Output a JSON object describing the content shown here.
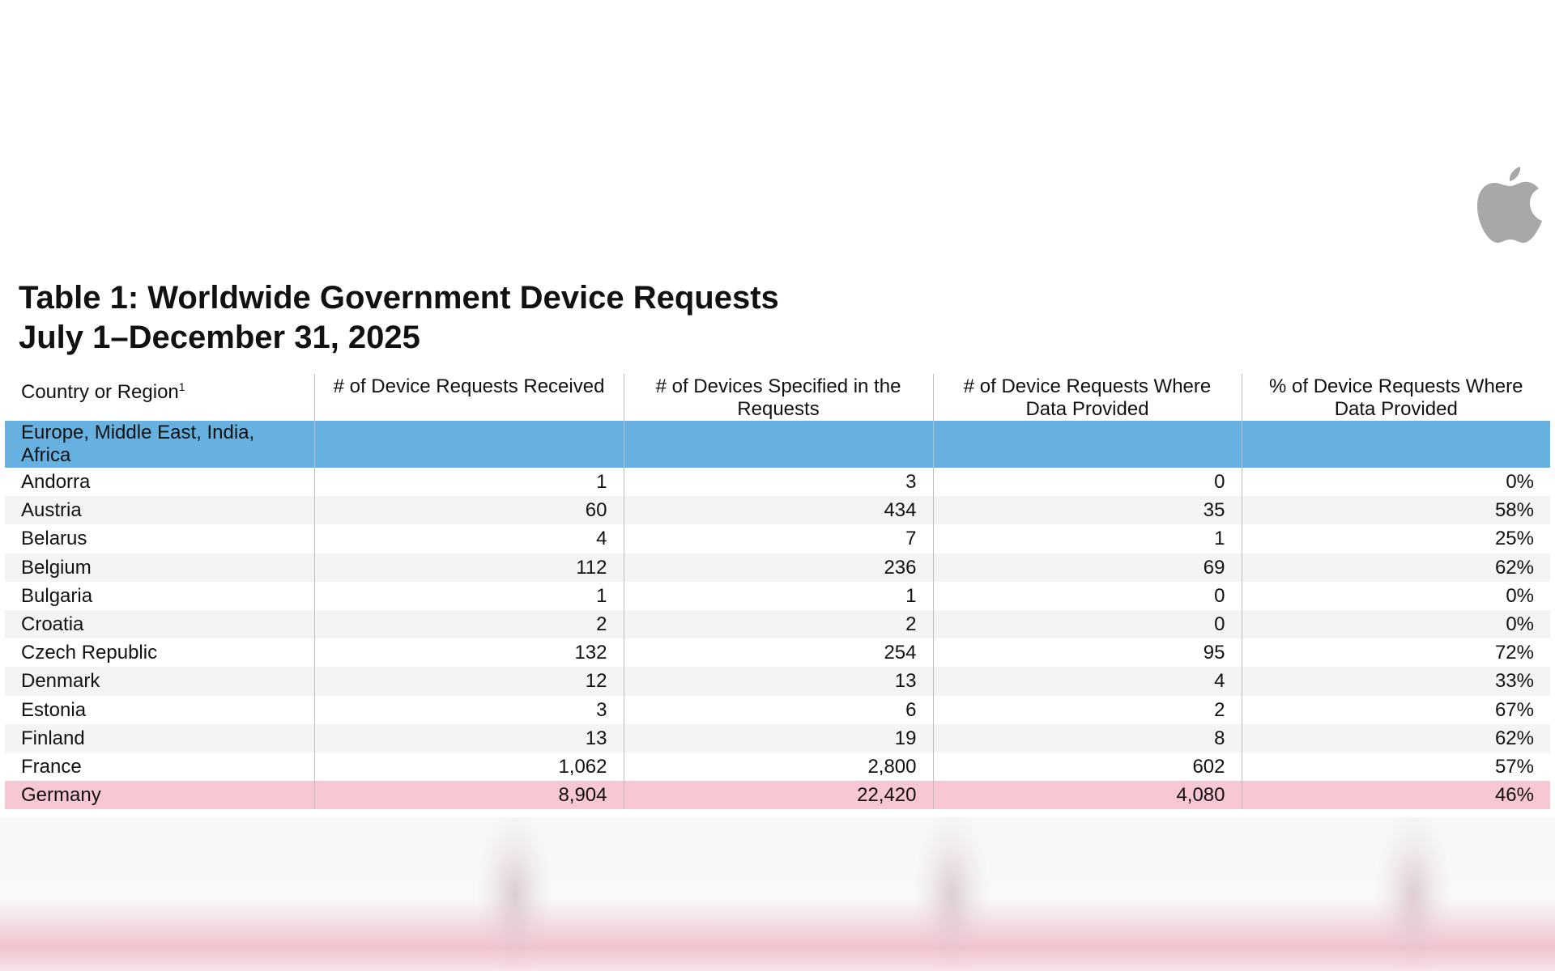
{
  "title": {
    "line1": "Table 1: Worldwide Government Device Requests",
    "line2": "July 1–December 31, 2025"
  },
  "logo": {
    "icon": "apple-logo-icon",
    "color": "#a8a8a8"
  },
  "colors": {
    "region_row": "#66b1df",
    "highlight_row": "#f7c8d3"
  },
  "table": {
    "headers": {
      "country": "Country or Region",
      "country_footnote": "1",
      "requests": "# of Device Requests Received",
      "devices": "# of Devices Specified in the Requests",
      "provided": "# of Device Requests Where Data Provided",
      "percent": "% of Device Requests Where Data Provided"
    },
    "region": "Europe, Middle East, India, Africa",
    "rows": [
      {
        "country": "Andorra",
        "requests": "1",
        "devices": "3",
        "provided": "0",
        "percent": "0%"
      },
      {
        "country": "Austria",
        "requests": "60",
        "devices": "434",
        "provided": "35",
        "percent": "58%"
      },
      {
        "country": "Belarus",
        "requests": "4",
        "devices": "7",
        "provided": "1",
        "percent": "25%"
      },
      {
        "country": "Belgium",
        "requests": "112",
        "devices": "236",
        "provided": "69",
        "percent": "62%"
      },
      {
        "country": "Bulgaria",
        "requests": "1",
        "devices": "1",
        "provided": "0",
        "percent": "0%"
      },
      {
        "country": "Croatia",
        "requests": "2",
        "devices": "2",
        "provided": "0",
        "percent": "0%"
      },
      {
        "country": "Czech Republic",
        "requests": "132",
        "devices": "254",
        "provided": "95",
        "percent": "72%"
      },
      {
        "country": "Denmark",
        "requests": "12",
        "devices": "13",
        "provided": "4",
        "percent": "33%"
      },
      {
        "country": "Estonia",
        "requests": "3",
        "devices": "6",
        "provided": "2",
        "percent": "67%"
      },
      {
        "country": "Finland",
        "requests": "13",
        "devices": "19",
        "provided": "8",
        "percent": "62%"
      },
      {
        "country": "France",
        "requests": "1,062",
        "devices": "2,800",
        "provided": "602",
        "percent": "57%"
      },
      {
        "country": "Germany",
        "requests": "8,904",
        "devices": "22,420",
        "provided": "4,080",
        "percent": "46%"
      }
    ]
  }
}
